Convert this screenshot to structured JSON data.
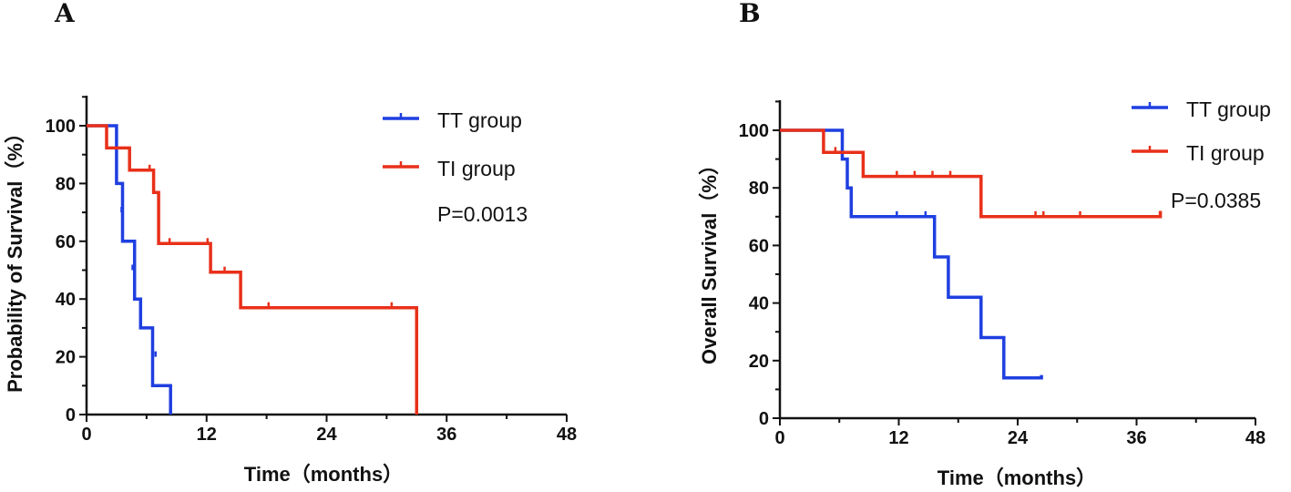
{
  "chart_data": [
    {
      "type": "line",
      "panel_label": "A",
      "xlabel": "Time（months）",
      "ylabel": "Probability of Survival（%）",
      "xlim": [
        0,
        48
      ],
      "ylim": [
        0,
        110
      ],
      "xticks": [
        0,
        12,
        24,
        36,
        48
      ],
      "xtick_labels": [
        "0",
        "12",
        "24",
        "36",
        "48"
      ],
      "yticks": [
        0,
        20,
        40,
        60,
        80,
        100
      ],
      "ytick_labels": [
        "0",
        "20",
        "40",
        "60",
        "80",
        "100"
      ],
      "legend_placement": "top-right",
      "annotation": "P=0.0013",
      "series": [
        {
          "name": "TT group",
          "color": "#1f3fe0",
          "points": [
            [
              0,
              100
            ],
            [
              3,
              100
            ],
            [
              3,
              80
            ],
            [
              3.6,
              80
            ],
            [
              3.6,
              60
            ],
            [
              4.8,
              60
            ],
            [
              4.8,
              40
            ],
            [
              5.4,
              40
            ],
            [
              5.4,
              30
            ],
            [
              6.6,
              30
            ],
            [
              6.6,
              10
            ],
            [
              8.4,
              10
            ],
            [
              8.4,
              0
            ]
          ],
          "censors": [
            [
              3.5,
              70
            ],
            [
              4.6,
              50
            ],
            [
              6.9,
              20
            ]
          ]
        },
        {
          "name": "TI group",
          "color": "#e8301a",
          "points": [
            [
              0,
              100
            ],
            [
              2,
              100
            ],
            [
              2,
              92.3
            ],
            [
              4.3,
              92.3
            ],
            [
              4.3,
              84.6
            ],
            [
              6.7,
              84.6
            ],
            [
              6.7,
              76.9
            ],
            [
              7.2,
              76.9
            ],
            [
              7.2,
              59.2
            ],
            [
              12.4,
              59.2
            ],
            [
              12.4,
              49.3
            ],
            [
              15.4,
              49.3
            ],
            [
              15.4,
              37
            ],
            [
              33,
              37
            ],
            [
              33,
              0
            ]
          ],
          "censors": [
            [
              6.3,
              84.6
            ],
            [
              8.3,
              59.2
            ],
            [
              12.1,
              59.2
            ],
            [
              13.8,
              49.3
            ],
            [
              18.2,
              37
            ],
            [
              30.5,
              37
            ]
          ]
        }
      ]
    },
    {
      "type": "line",
      "panel_label": "B",
      "xlabel": "Time（months）",
      "ylabel": "Overall Survival（%）",
      "xlim": [
        0,
        48
      ],
      "ylim": [
        0,
        110
      ],
      "xticks": [
        0,
        12,
        24,
        36,
        48
      ],
      "xtick_labels": [
        "0",
        "12",
        "24",
        "36",
        "48"
      ],
      "yticks": [
        0,
        20,
        40,
        60,
        80,
        100
      ],
      "ytick_labels": [
        "0",
        "20",
        "40",
        "60",
        "80",
        "100"
      ],
      "legend_placement": "top-right",
      "annotation": "P=0.0385",
      "series": [
        {
          "name": "TT group",
          "color": "#1f3fe0",
          "points": [
            [
              0,
              100
            ],
            [
              6.3,
              100
            ],
            [
              6.3,
              90
            ],
            [
              6.8,
              90
            ],
            [
              6.8,
              80
            ],
            [
              7.2,
              80
            ],
            [
              7.2,
              70
            ],
            [
              15.6,
              70
            ],
            [
              15.6,
              56
            ],
            [
              17,
              56
            ],
            [
              17,
              42
            ],
            [
              20.3,
              42
            ],
            [
              20.3,
              28
            ],
            [
              22.6,
              28
            ],
            [
              22.6,
              14
            ],
            [
              26.4,
              14
            ],
            [
              26.4,
              15
            ]
          ],
          "censors": [
            [
              11.8,
              70
            ],
            [
              14.7,
              70
            ]
          ]
        },
        {
          "name": "TI group",
          "color": "#e8301a",
          "points": [
            [
              0,
              100
            ],
            [
              4.4,
              100
            ],
            [
              4.4,
              92.3
            ],
            [
              8.4,
              92.3
            ],
            [
              8.4,
              84
            ],
            [
              20.3,
              84
            ],
            [
              20.3,
              70
            ],
            [
              38.4,
              70
            ],
            [
              38.4,
              72
            ]
          ],
          "censors": [
            [
              5.6,
              92.3
            ],
            [
              11.8,
              84
            ],
            [
              13.6,
              84
            ],
            [
              15.4,
              84
            ],
            [
              17.2,
              84
            ],
            [
              25.8,
              70
            ],
            [
              26.6,
              70
            ],
            [
              30.3,
              70
            ]
          ]
        }
      ]
    }
  ]
}
